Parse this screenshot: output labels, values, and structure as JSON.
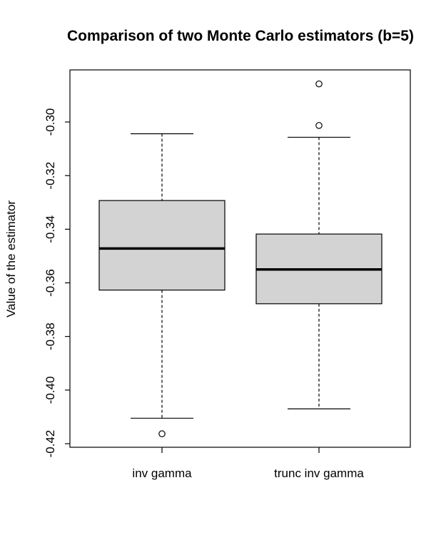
{
  "chart_data": {
    "type": "boxplot",
    "title": "Comparison of two Monte Carlo estimators (b=5)",
    "xlabel": "",
    "ylabel": "Value of the estimator",
    "ylim": [
      -0.42,
      -0.3
    ],
    "yticks": [
      -0.3,
      -0.32,
      -0.34,
      -0.36,
      -0.38,
      -0.4,
      -0.42
    ],
    "ytick_labels": [
      "-0.30",
      "-0.32",
      "-0.34",
      "-0.36",
      "-0.38",
      "-0.40",
      "-0.42"
    ],
    "categories": [
      "inv gamma",
      "trunc inv gamma"
    ],
    "grid": false,
    "box_fill": "#d3d3d3",
    "series": [
      {
        "whisker_low": -0.4105,
        "q1": -0.3627,
        "median": -0.3472,
        "q3": -0.3293,
        "whisker_high": -0.3044,
        "outliers": [
          -0.4163
        ]
      },
      {
        "whisker_low": -0.407,
        "q1": -0.3678,
        "median": -0.355,
        "q3": -0.3418,
        "whisker_high": -0.3057,
        "outliers": [
          -0.3013,
          -0.2858
        ]
      }
    ]
  }
}
